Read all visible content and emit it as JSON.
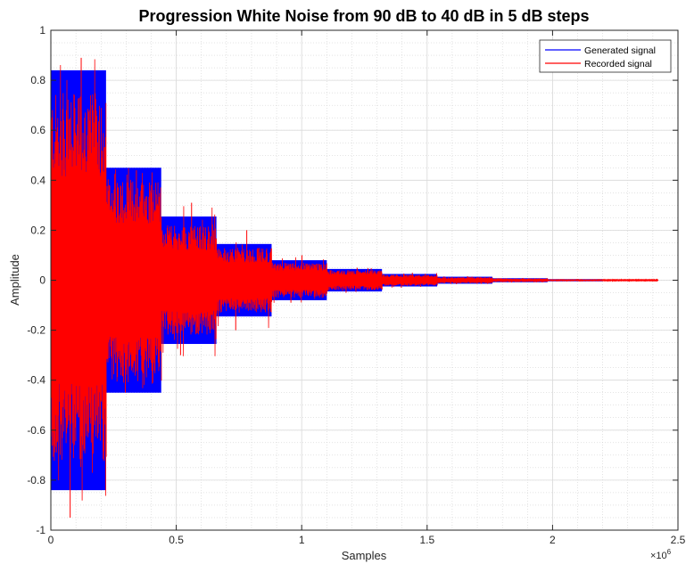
{
  "chart_data": {
    "type": "line",
    "title": "Progression White Noise from 90 dB to 40 dB in 5 dB steps",
    "xlabel": "Samples",
    "ylabel": "Amplitude",
    "x_exponent_base": "×10",
    "x_exponent_power": "6",
    "xlim": [
      0,
      2.5
    ],
    "ylim": [
      -1,
      1
    ],
    "x_ticks": [
      0,
      0.5,
      1,
      1.5,
      2,
      2.5
    ],
    "x_tick_labels": [
      "0",
      "0.5",
      "1",
      "1.5",
      "2",
      "2.5"
    ],
    "y_ticks": [
      -1,
      -0.8,
      -0.6,
      -0.4,
      -0.2,
      0,
      0.2,
      0.4,
      0.6,
      0.8,
      1
    ],
    "y_tick_labels": [
      "-1",
      "-0.8",
      "-0.6",
      "-0.4",
      "-0.2",
      "0",
      "0.2",
      "0.4",
      "0.6",
      "0.8",
      "1"
    ],
    "grid": true,
    "minor_grid": true,
    "legend_position": "top-right",
    "x_unit_note": "x values in units of 1e6 samples",
    "series": [
      {
        "name": "Generated signal",
        "color": "#0000ff",
        "segments": [
          {
            "x_start": 0.0,
            "x_end": 0.22,
            "amplitude": 0.84
          },
          {
            "x_start": 0.22,
            "x_end": 0.44,
            "amplitude": 0.45
          },
          {
            "x_start": 0.44,
            "x_end": 0.66,
            "amplitude": 0.255
          },
          {
            "x_start": 0.66,
            "x_end": 0.88,
            "amplitude": 0.145
          },
          {
            "x_start": 0.88,
            "x_end": 1.1,
            "amplitude": 0.08
          },
          {
            "x_start": 1.1,
            "x_end": 1.32,
            "amplitude": 0.045
          },
          {
            "x_start": 1.32,
            "x_end": 1.54,
            "amplitude": 0.025
          },
          {
            "x_start": 1.54,
            "x_end": 1.76,
            "amplitude": 0.014
          },
          {
            "x_start": 1.76,
            "x_end": 1.98,
            "amplitude": 0.008
          },
          {
            "x_start": 1.98,
            "x_end": 2.2,
            "amplitude": 0.0045
          },
          {
            "x_start": 2.2,
            "x_end": 2.42,
            "amplitude": 0.0025
          }
        ]
      },
      {
        "name": "Recorded signal",
        "color": "#ff0000",
        "segments": [
          {
            "x_start": 0.0,
            "x_end": 0.22,
            "typical_amplitude": 0.75,
            "peak_max": 0.89,
            "peak_min": -0.95
          },
          {
            "x_start": 0.22,
            "x_end": 0.44,
            "typical_amplitude": 0.41,
            "peak_max": 0.44,
            "peak_min": -0.45
          },
          {
            "x_start": 0.44,
            "x_end": 0.66,
            "typical_amplitude": 0.22,
            "peak_max": 0.31,
            "peak_min": -0.3
          },
          {
            "x_start": 0.66,
            "x_end": 0.88,
            "typical_amplitude": 0.13,
            "peak_max": 0.2,
            "peak_min": -0.2
          },
          {
            "x_start": 0.88,
            "x_end": 1.1,
            "typical_amplitude": 0.07,
            "peak_max": 0.1,
            "peak_min": -0.09
          },
          {
            "x_start": 1.1,
            "x_end": 1.32,
            "typical_amplitude": 0.04,
            "peak_max": 0.05,
            "peak_min": -0.05
          },
          {
            "x_start": 1.32,
            "x_end": 1.54,
            "typical_amplitude": 0.022,
            "peak_max": 0.03,
            "peak_min": -0.03
          },
          {
            "x_start": 1.54,
            "x_end": 1.76,
            "typical_amplitude": 0.012,
            "peak_max": 0.016,
            "peak_min": -0.016
          },
          {
            "x_start": 1.76,
            "x_end": 1.98,
            "typical_amplitude": 0.007,
            "peak_max": 0.009,
            "peak_min": -0.009
          },
          {
            "x_start": 1.98,
            "x_end": 2.2,
            "typical_amplitude": 0.004,
            "peak_max": 0.005,
            "peak_min": -0.005
          },
          {
            "x_start": 2.2,
            "x_end": 2.42,
            "typical_amplitude": 0.002,
            "peak_max": 0.003,
            "peak_min": -0.003
          }
        ]
      }
    ]
  }
}
